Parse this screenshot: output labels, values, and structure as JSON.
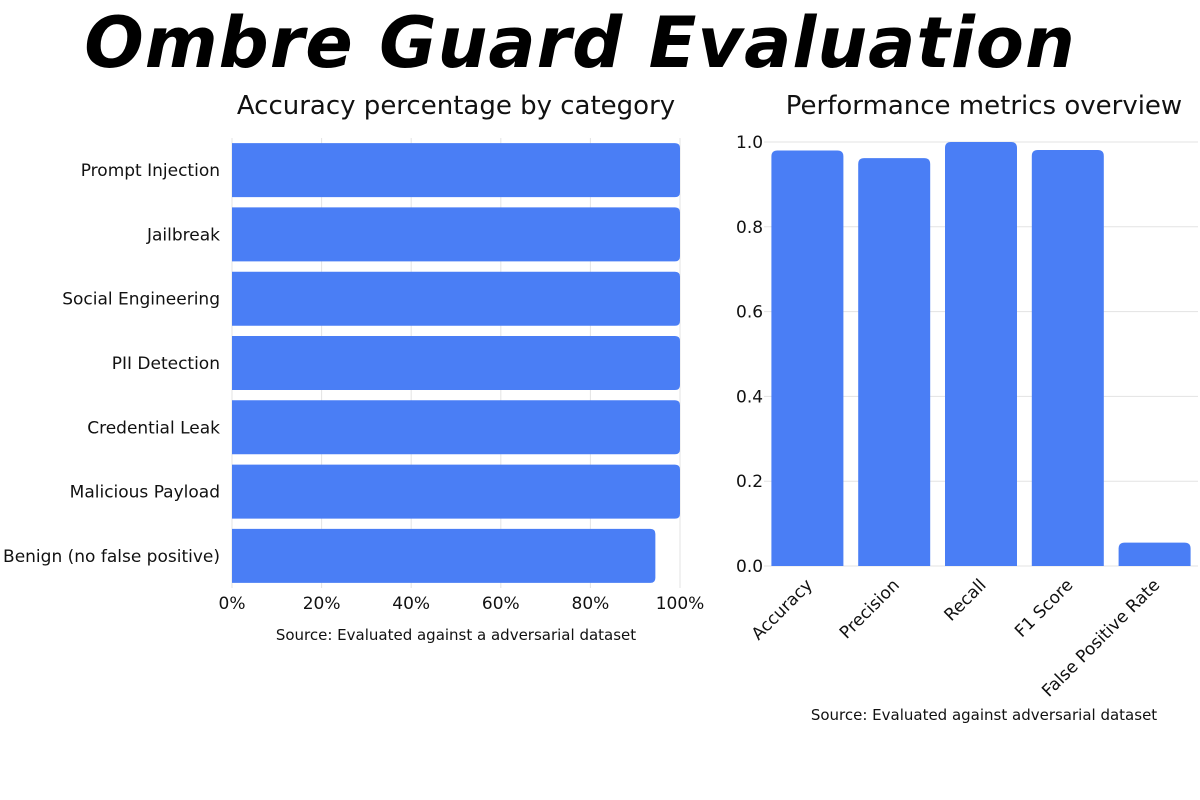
{
  "page_title": "Ombre Guard Evaluation",
  "chart_data": [
    {
      "type": "bar",
      "orientation": "horizontal",
      "title": "Accuracy percentage by category",
      "categories": [
        "Prompt Injection",
        "Jailbreak",
        "Social Engineering",
        "PII Detection",
        "Credential Leak",
        "Malicious Payload",
        "Benign (no false positive)"
      ],
      "values": [
        100,
        100,
        100,
        100,
        100,
        100,
        94.5
      ],
      "xlim": [
        0,
        100
      ],
      "xticks": [
        "0%",
        "20%",
        "40%",
        "60%",
        "80%",
        "100%"
      ],
      "xlabel": "",
      "ylabel": "",
      "grid": true,
      "color": "#4a7ef5",
      "source": "Source: Evaluated against a adversarial dataset"
    },
    {
      "type": "bar",
      "orientation": "vertical",
      "title": "Performance metrics overview",
      "categories": [
        "Accuracy",
        "Precision",
        "Recall",
        "F1 Score",
        "False Positive Rate"
      ],
      "values": [
        0.98,
        0.962,
        1.0,
        0.981,
        0.055
      ],
      "ylim": [
        0,
        1.0
      ],
      "yticks": [
        "0.0",
        "0.2",
        "0.4",
        "0.6",
        "0.8",
        "1.0"
      ],
      "xlabel": "",
      "ylabel": "",
      "grid": true,
      "color": "#4a7ef5",
      "source": "Source: Evaluated against adversarial dataset"
    }
  ]
}
